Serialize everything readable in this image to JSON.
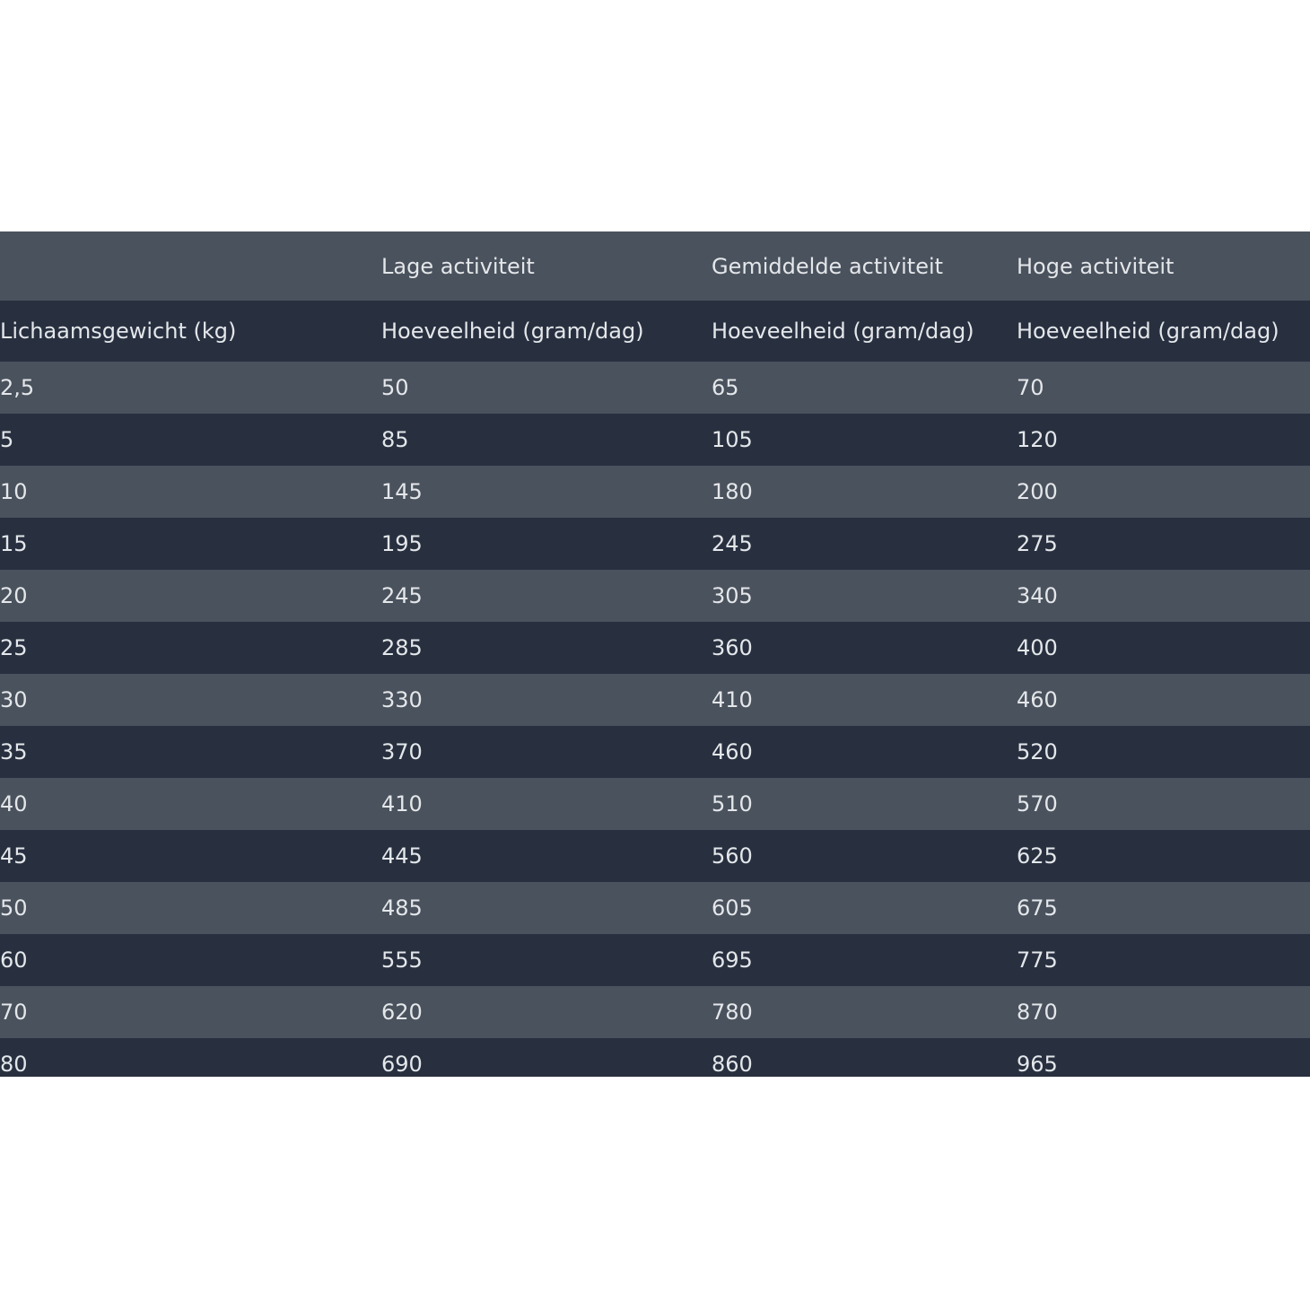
{
  "table": {
    "groups": [
      "Lage activiteit",
      "Gemiddelde activiteit",
      "Hoge activiteit"
    ],
    "columns": [
      "Lichaamsgewicht (kg)",
      "Hoeveelheid (gram/dag)",
      "Hoeveelheid (gram/dag)",
      "Hoeveelheid (gram/dag)"
    ],
    "rows": [
      [
        "2,5",
        "50",
        "65",
        "70"
      ],
      [
        "5",
        "85",
        "105",
        "120"
      ],
      [
        "10",
        "145",
        "180",
        "200"
      ],
      [
        "15",
        "195",
        "245",
        "275"
      ],
      [
        "20",
        "245",
        "305",
        "340"
      ],
      [
        "25",
        "285",
        "360",
        "400"
      ],
      [
        "30",
        "330",
        "410",
        "460"
      ],
      [
        "35",
        "370",
        "460",
        "520"
      ],
      [
        "40",
        "410",
        "510",
        "570"
      ],
      [
        "45",
        "445",
        "560",
        "625"
      ],
      [
        "50",
        "485",
        "605",
        "675"
      ],
      [
        "60",
        "555",
        "695",
        "775"
      ],
      [
        "70",
        "620",
        "780",
        "870"
      ],
      [
        "80",
        "690",
        "860",
        "965"
      ]
    ]
  }
}
